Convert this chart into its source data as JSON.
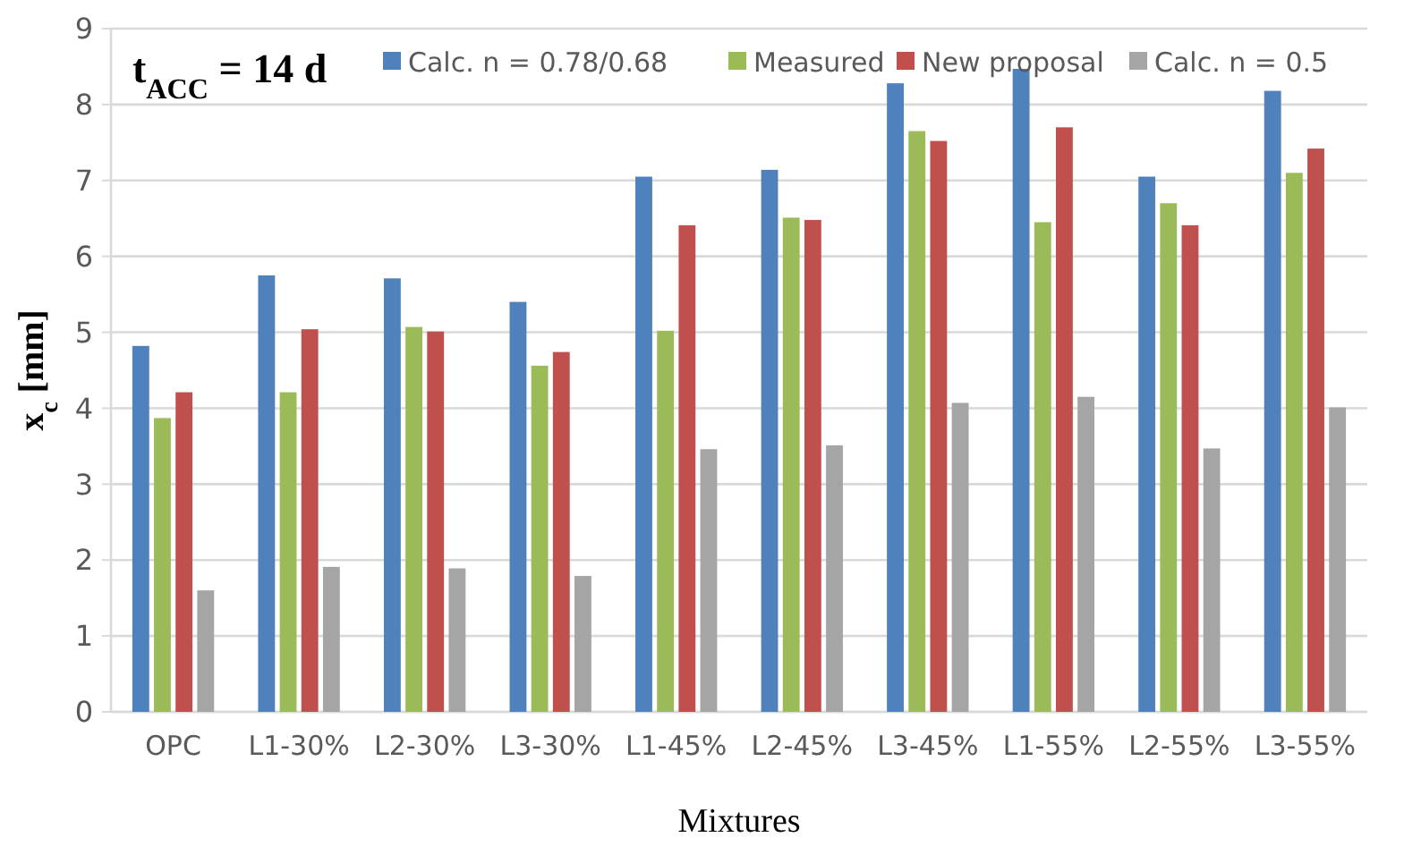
{
  "chart_data": {
    "type": "bar",
    "xlabel": "Mixtures",
    "ylabel": "x$_{c}$ [mm]",
    "annotations": [
      "t$_{ACC}$ = 14 d"
    ],
    "categories": [
      "OPC",
      "L1-30%",
      "L2-30%",
      "L3-30%",
      "L1-45%",
      "L2-45%",
      "L3-45%",
      "L1-55%",
      "L2-55%",
      "L3-55%"
    ],
    "series": [
      {
        "name": "Calc. n = 0.78/0.68",
        "color": "#4f81bd",
        "values": [
          4.82,
          5.75,
          5.71,
          5.4,
          7.05,
          7.14,
          8.28,
          8.47,
          7.05,
          8.18
        ]
      },
      {
        "name": "Measured",
        "color": "#9bbb59",
        "values": [
          3.87,
          4.21,
          5.07,
          4.56,
          5.02,
          6.51,
          7.65,
          6.45,
          6.7,
          7.1
        ]
      },
      {
        "name": "New proposal",
        "color": "#c0504d",
        "values": [
          4.21,
          5.04,
          5.01,
          4.74,
          6.41,
          6.48,
          7.52,
          7.7,
          6.41,
          7.42
        ]
      },
      {
        "name": "Calc. n = 0.5",
        "color": "#a5a5a5",
        "values": [
          1.6,
          1.91,
          1.89,
          1.79,
          3.46,
          3.51,
          4.07,
          4.15,
          3.47,
          4.01
        ]
      }
    ],
    "ylim": [
      0,
      9
    ],
    "yticks": [
      0,
      1,
      2,
      3,
      4,
      5,
      6,
      7,
      8,
      9
    ],
    "grid": "y",
    "legend": "top right"
  }
}
